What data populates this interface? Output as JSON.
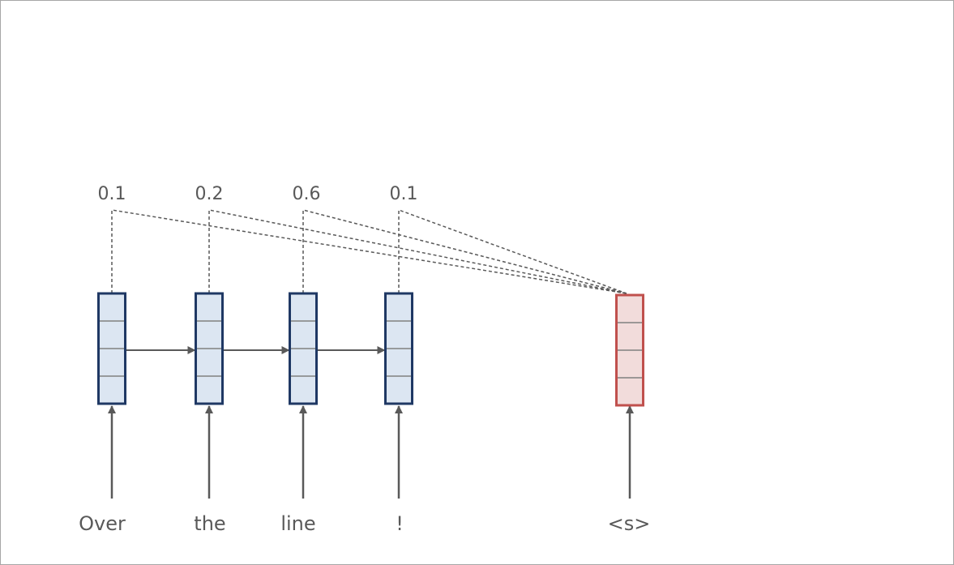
{
  "encoder": {
    "tokens": [
      "Over",
      "the",
      "line",
      "!"
    ],
    "attention_weights": [
      "0.1",
      "0.2",
      "0.6",
      "0.1"
    ]
  },
  "decoder": {
    "token": "<s>"
  },
  "colors": {
    "encoder_fill": "#dce6f2",
    "encoder_stroke": "#1f3864",
    "decoder_fill": "#f2dcdb",
    "decoder_stroke": "#c0504d",
    "line": "#595959",
    "text": "#595959"
  }
}
